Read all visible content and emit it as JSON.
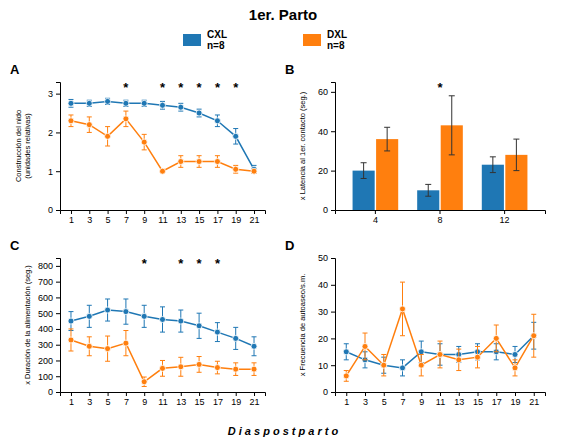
{
  "title": "1er. Parto",
  "xlabel": "D i a s   p o s t p a r t o",
  "chart_data": [
    {
      "type": "line",
      "title": "A",
      "ylabel": "Construcción del nido\n(unidades relativas)",
      "x": [
        1,
        3,
        5,
        7,
        9,
        11,
        13,
        15,
        17,
        19,
        21
      ],
      "xlim": [
        -0.2,
        22.2
      ],
      "xticks": [
        1,
        3,
        5,
        7,
        9,
        11,
        13,
        15,
        17,
        19,
        21
      ],
      "ylim": [
        0,
        3.3
      ],
      "yticks": [
        0,
        1,
        2,
        3
      ],
      "legend": "top",
      "series": [
        {
          "name": "CXL\nn=8",
          "values": [
            2.75,
            2.75,
            2.8,
            2.75,
            2.75,
            2.7,
            2.65,
            2.5,
            2.3,
            1.9,
            1.05
          ],
          "errors": [
            0.1,
            0.08,
            0.08,
            0.08,
            0.08,
            0.1,
            0.1,
            0.1,
            0.15,
            0.2,
            0.1
          ]
        },
        {
          "name": "DXL\nn=8",
          "values": [
            2.3,
            2.2,
            1.9,
            2.35,
            1.75,
            1.0,
            1.25,
            1.25,
            1.25,
            1.05,
            1.0
          ],
          "errors": [
            0.15,
            0.2,
            0.25,
            0.2,
            0.2,
            0.05,
            0.15,
            0.15,
            0.15,
            0.1,
            0.05
          ]
        }
      ],
      "annotations": [
        {
          "text": "*",
          "x": 7
        },
        {
          "text": "*",
          "x": 11
        },
        {
          "text": "*",
          "x": 13
        },
        {
          "text": "*",
          "x": 15
        },
        {
          "text": "*",
          "x": 17
        },
        {
          "text": "*",
          "x": 19
        }
      ]
    },
    {
      "type": "bar",
      "title": "B",
      "ylabel": "x Latencia al 1er. contacto (seg.)",
      "categories": [
        4,
        8,
        12
      ],
      "ylim": [
        0,
        65
      ],
      "yticks": [
        0,
        20,
        40,
        60
      ],
      "series": [
        {
          "values": [
            20,
            10,
            23
          ],
          "errors": [
            4,
            3,
            4
          ]
        },
        {
          "values": [
            36,
            43,
            28
          ],
          "errors": [
            6,
            15,
            8
          ]
        }
      ],
      "annotations": [
        {
          "text": "*",
          "x": 8
        }
      ]
    },
    {
      "type": "line",
      "title": "C",
      "ylabel": "x Duración de la alimentación (seg.)",
      "x": [
        1,
        3,
        5,
        7,
        9,
        11,
        13,
        15,
        17,
        19,
        21
      ],
      "xlim": [
        -0.2,
        22.2
      ],
      "xticks": [
        1,
        3,
        5,
        7,
        9,
        11,
        13,
        15,
        17,
        19,
        21
      ],
      "ylim": [
        0,
        850
      ],
      "yticks": [
        0,
        100,
        200,
        300,
        400,
        500,
        600,
        700,
        800
      ],
      "series": [
        {
          "values": [
            450,
            480,
            520,
            510,
            480,
            460,
            450,
            420,
            380,
            340,
            290
          ],
          "errors": [
            60,
            70,
            70,
            80,
            70,
            80,
            70,
            80,
            60,
            70,
            60
          ]
        },
        {
          "values": [
            330,
            290,
            275,
            310,
            65,
            150,
            160,
            175,
            155,
            145,
            145
          ],
          "errors": [
            70,
            60,
            80,
            80,
            30,
            50,
            60,
            50,
            40,
            40,
            40
          ]
        }
      ],
      "annotations": [
        {
          "text": "*",
          "x": 9
        },
        {
          "text": "*",
          "x": 13
        },
        {
          "text": "*",
          "x": 15
        },
        {
          "text": "*",
          "x": 17
        }
      ]
    },
    {
      "type": "line",
      "title": "D",
      "ylabel": "x Frecuencia de autoaseo/s.m.",
      "x": [
        1,
        3,
        5,
        7,
        9,
        11,
        13,
        15,
        17,
        19,
        21
      ],
      "xlim": [
        -0.2,
        22.2
      ],
      "xticks": [
        1,
        3,
        5,
        7,
        9,
        11,
        13,
        15,
        17,
        19,
        21
      ],
      "ylim": [
        0,
        50
      ],
      "yticks": [
        0,
        10,
        20,
        30,
        40,
        50
      ],
      "series": [
        {
          "values": [
            15,
            12,
            10,
            9,
            15,
            14,
            14,
            15,
            15,
            14,
            21
          ],
          "errors": [
            3,
            3,
            3,
            3,
            4,
            4,
            3,
            3,
            3,
            3,
            5
          ]
        },
        {
          "values": [
            6,
            17,
            10,
            31,
            10,
            14,
            12,
            13,
            20,
            9,
            21
          ],
          "errors": [
            2,
            5,
            4,
            10,
            4,
            5,
            4,
            4,
            5,
            3,
            8
          ]
        }
      ]
    }
  ]
}
